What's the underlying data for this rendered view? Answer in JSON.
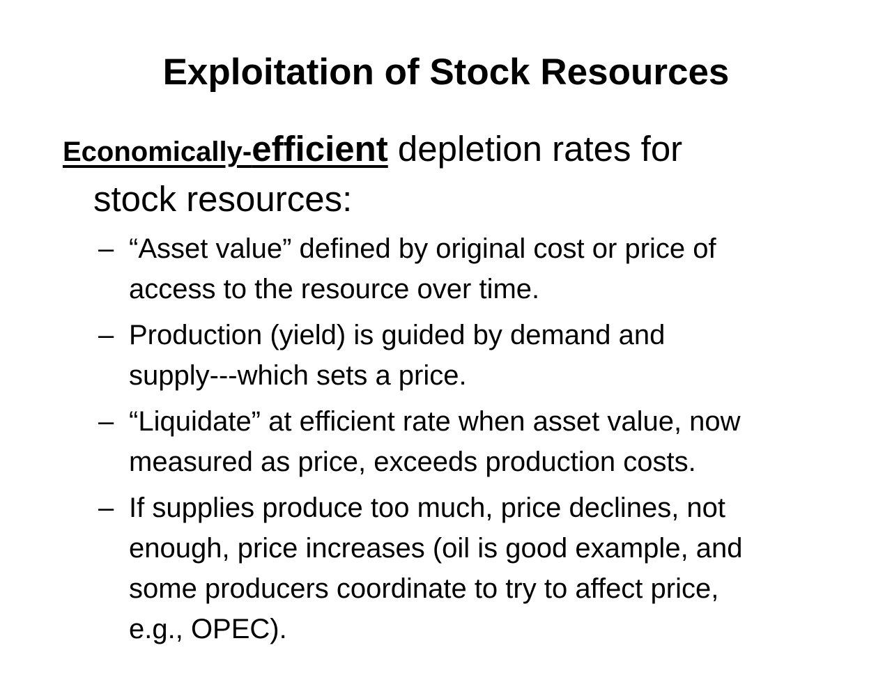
{
  "slide": {
    "title": "Exploitation of Stock Resources",
    "intro": {
      "underlined_part1": "Economically-",
      "underlined_part2": "efficient",
      "rest_line1": " depletion rates for",
      "line2": "stock resources:"
    },
    "bullet_marker": "–",
    "bullets": [
      {
        "line1": "“Asset value” defined by original cost or price of",
        "line2": "access to the resource over time."
      },
      {
        "line1": "Production (yield) is guided by demand and",
        "line2": "supply---which sets a price."
      },
      {
        "line1": "“Liquidate” at efficient rate when asset value, now",
        "line2": "measured as price, exceeds production costs."
      },
      {
        "line1": "If supplies produce too much, price declines, not",
        "line2": "enough, price increases (oil is good example, and",
        "line3": "some producers coordinate to try to affect price,",
        "line4": "e.g., OPEC)."
      }
    ]
  }
}
